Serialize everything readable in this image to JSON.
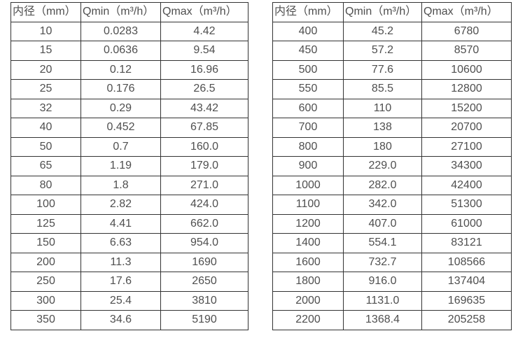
{
  "colors": {
    "background": "#ffffff",
    "border": "#333333",
    "text": "#4f4f4f"
  },
  "tables": [
    {
      "name": "flow-rates-small-diameters",
      "headers": [
        "内径（mm）",
        "Qmin（m³/h）",
        "Qmax（m³/h）"
      ],
      "rows": [
        [
          "10",
          "0.0283",
          "4.42"
        ],
        [
          "15",
          "0.0636",
          "9.54"
        ],
        [
          "20",
          "0.12",
          "16.96"
        ],
        [
          "25",
          "0.176",
          "26.5"
        ],
        [
          "32",
          "0.29",
          "43.42"
        ],
        [
          "40",
          "0.452",
          "67.85"
        ],
        [
          "50",
          "0.7",
          "160.0"
        ],
        [
          "65",
          "1.19",
          "179.0"
        ],
        [
          "80",
          "1.8",
          "271.0"
        ],
        [
          "100",
          "2.82",
          "424.0"
        ],
        [
          "125",
          "4.41",
          "662.0"
        ],
        [
          "150",
          "6.63",
          "954.0"
        ],
        [
          "200",
          "11.3",
          "1690"
        ],
        [
          "250",
          "17.6",
          "2650"
        ],
        [
          "300",
          "25.4",
          "3810"
        ],
        [
          "350",
          "34.6",
          "5190"
        ]
      ]
    },
    {
      "name": "flow-rates-large-diameters",
      "headers": [
        "内径（mm）",
        "Qmin（m³/h）",
        "Qmax（m³/h）"
      ],
      "rows": [
        [
          "400",
          "45.2",
          "6780"
        ],
        [
          "450",
          "57.2",
          "8570"
        ],
        [
          "500",
          "77.6",
          "10600"
        ],
        [
          "550",
          "85.5",
          "12800"
        ],
        [
          "600",
          "110",
          "15200"
        ],
        [
          "700",
          "138",
          "20700"
        ],
        [
          "800",
          "180",
          "27100"
        ],
        [
          "900",
          "229.0",
          "34300"
        ],
        [
          "1000",
          "282.0",
          "42400"
        ],
        [
          "1100",
          "342.0",
          "51300"
        ],
        [
          "1200",
          "407.0",
          "61000"
        ],
        [
          "1400",
          "554.1",
          "83121"
        ],
        [
          "1600",
          "732.7",
          "108566"
        ],
        [
          "1800",
          "916.0",
          "137404"
        ],
        [
          "2000",
          "1131.0",
          "169635"
        ],
        [
          "2200",
          "1368.4",
          "205258"
        ]
      ]
    }
  ]
}
